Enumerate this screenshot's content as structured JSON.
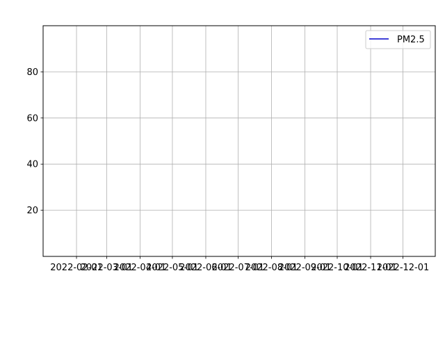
{
  "chart_data": {
    "type": "line",
    "title": "",
    "xlabel": "",
    "ylabel": "",
    "x_ticks": [
      "2022-02-01",
      "2022-03-01",
      "2022-04-01",
      "2022-05-01",
      "2022-06-01",
      "2022-07-01",
      "2022-08-01",
      "2022-09-01",
      "2022-10-01",
      "2022-11-01",
      "2022-12-01"
    ],
    "xlim": [
      "2022-01-01",
      "2022-12-31"
    ],
    "y_ticks": [
      20,
      40,
      60,
      80
    ],
    "ylim": [
      0,
      100
    ],
    "grid": true,
    "legend": {
      "position": "top-right"
    },
    "series": [
      {
        "name": "PM2.5",
        "color": "#0000cc",
        "x": [],
        "y": []
      }
    ]
  }
}
